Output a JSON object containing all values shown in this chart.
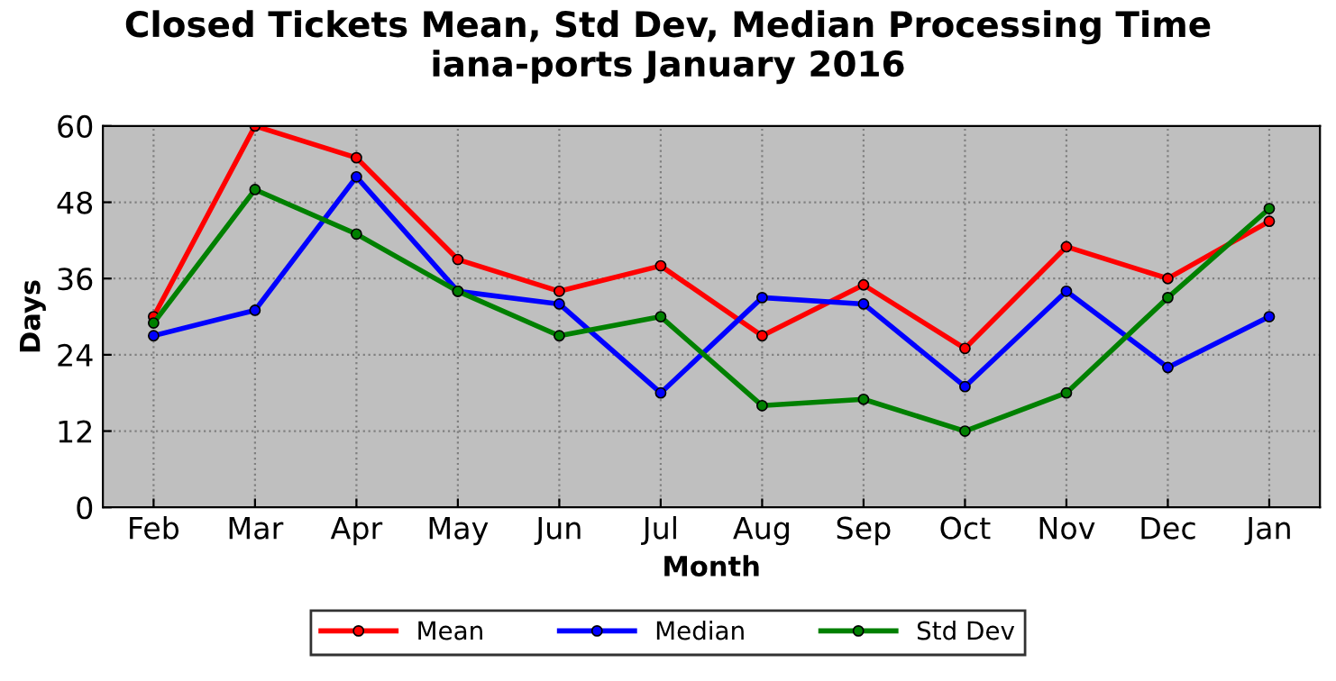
{
  "chart_data": {
    "type": "line",
    "title": "Closed Tickets Mean, Std Dev, Median Processing Time\niana-ports January 2016",
    "xlabel": "Month",
    "ylabel": "Days",
    "categories": [
      "Feb",
      "Mar",
      "Apr",
      "May",
      "Jun",
      "Jul",
      "Aug",
      "Sep",
      "Oct",
      "Nov",
      "Dec",
      "Jan"
    ],
    "series": [
      {
        "name": "Mean",
        "color": "#ff0000",
        "values": [
          30,
          60,
          55,
          39,
          34,
          38,
          27,
          35,
          25,
          41,
          36,
          45
        ]
      },
      {
        "name": "Median",
        "color": "#0000ff",
        "values": [
          27,
          31,
          52,
          34,
          32,
          18,
          33,
          32,
          19,
          34,
          22,
          30
        ]
      },
      {
        "name": "Std Dev",
        "color": "#008000",
        "values": [
          29,
          50,
          43,
          34,
          27,
          30,
          16,
          17,
          12,
          18,
          33,
          47
        ]
      }
    ],
    "ylim": [
      0,
      60
    ],
    "yticks": [
      0,
      12,
      24,
      36,
      48,
      60
    ],
    "grid": true,
    "legend": "bottom",
    "marker": "circle",
    "line_style": "solid"
  }
}
